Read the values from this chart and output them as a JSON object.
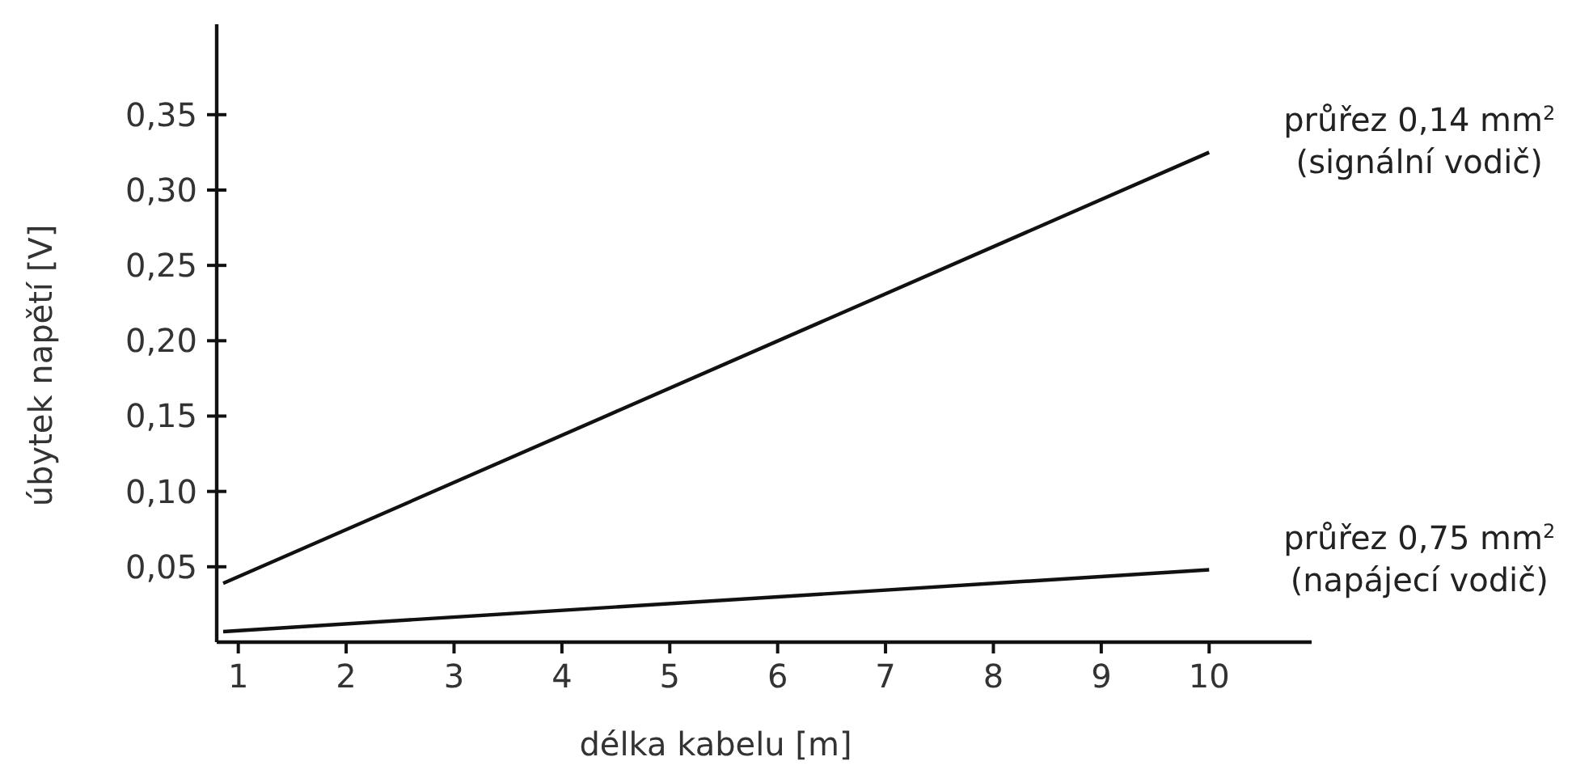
{
  "chart_data": {
    "type": "line",
    "xlabel": "délka kabelu [m]",
    "ylabel": "úbytek napětí [V]",
    "xlim": [
      0.8,
      10.95
    ],
    "ylim": [
      0,
      0.41
    ],
    "xticks": [
      1,
      2,
      3,
      4,
      5,
      6,
      7,
      8,
      9,
      10
    ],
    "yticks": [
      {
        "value": 0.05,
        "label": "0,05"
      },
      {
        "value": 0.1,
        "label": "0,10"
      },
      {
        "value": 0.15,
        "label": "0,15"
      },
      {
        "value": 0.2,
        "label": "0,20"
      },
      {
        "value": 0.25,
        "label": "0,25"
      },
      {
        "value": 0.3,
        "label": "0,30"
      },
      {
        "value": 0.35,
        "label": "0,35"
      }
    ],
    "grid": false,
    "marker": "none",
    "line_style": "solid",
    "x": [
      0.86,
      10
    ],
    "series": [
      {
        "name": "průřez 0,14 mm$^{2}$\n(signální vodič)",
        "color": "#111111",
        "values": [
          0.039,
          0.325
        ]
      },
      {
        "name": "průřez 0,75 mm$^{2}$\n(napájecí vodič)",
        "color": "#111111",
        "values": [
          0.007,
          0.048
        ]
      }
    ]
  }
}
